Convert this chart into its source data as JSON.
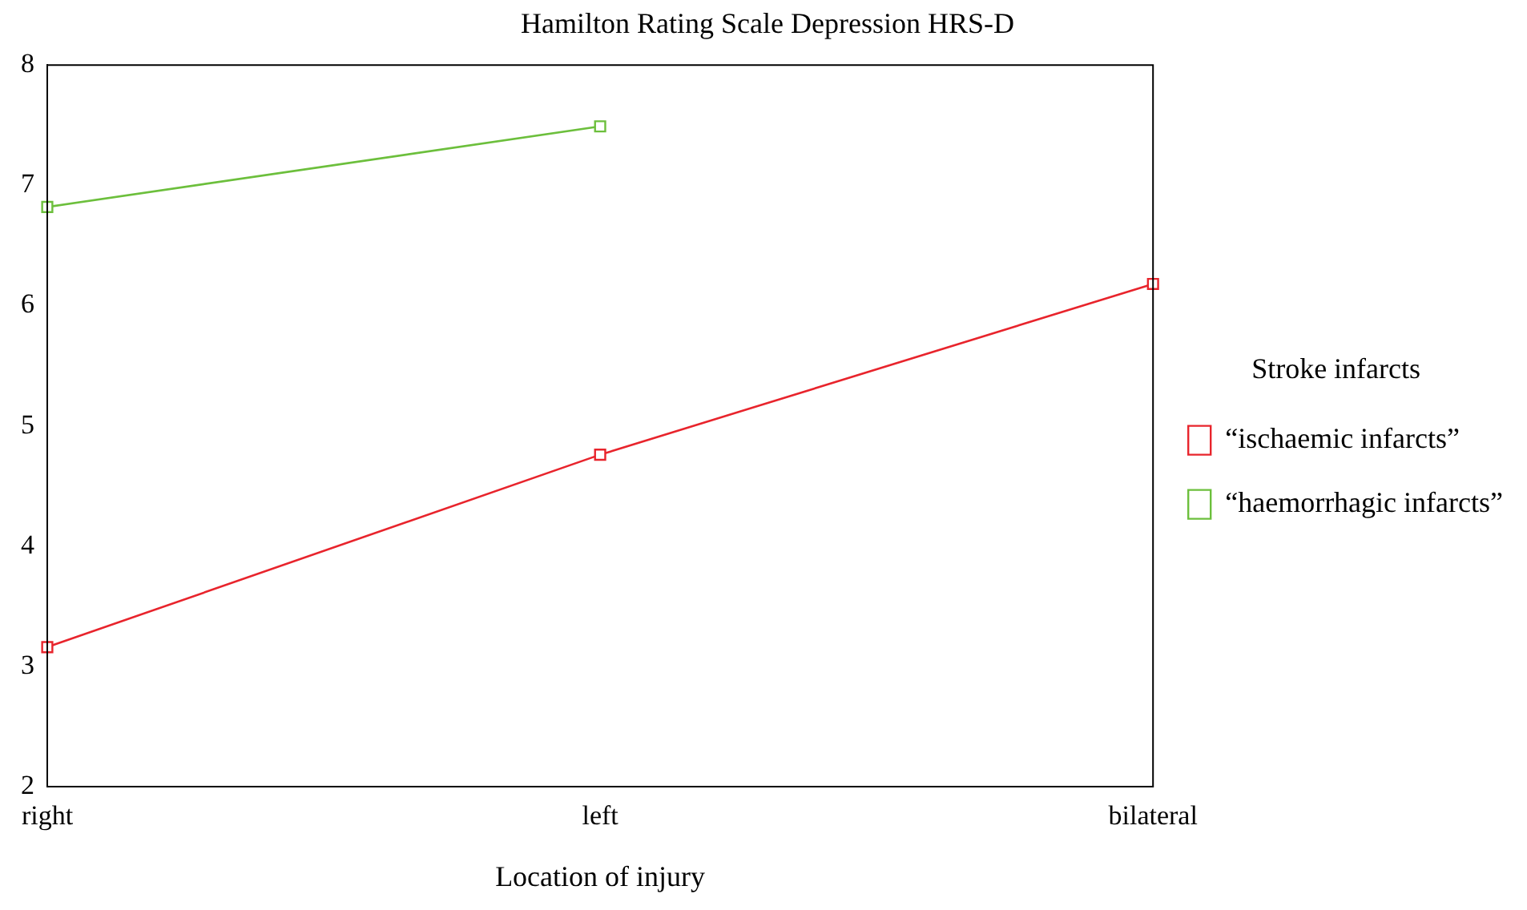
{
  "chart_data": {
    "type": "line",
    "title": "Hamilton Rating Scale Depression HRS-D",
    "xlabel": "Location of injury",
    "legend_title": "Stroke infarcts",
    "categories": [
      "right",
      "left",
      "bilateral"
    ],
    "series": [
      {
        "name": "“ischaemic infarcts”",
        "color": "#e8242c",
        "values": [
          3.16,
          4.76,
          6.18
        ]
      },
      {
        "name": "“haemorrhagic infarcts”",
        "color": "#6cbf3c",
        "values": [
          6.82,
          7.49,
          null
        ]
      }
    ],
    "ylim": [
      2,
      8
    ],
    "yticks": [
      2,
      3,
      4,
      5,
      6,
      7,
      8
    ],
    "grid": false,
    "legend": "right",
    "marker": "square",
    "line_style": "solid"
  }
}
